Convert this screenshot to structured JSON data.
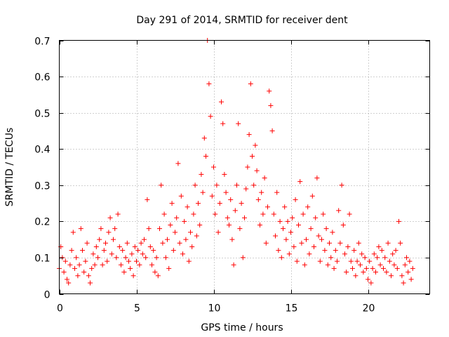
{
  "chart_data": {
    "type": "scatter",
    "title": "Day 291 of 2014, SRMTID for receiver dent",
    "xlabel": "GPS time / hours",
    "ylabel": "SRMTID / TECUs",
    "xlim": [
      0,
      24
    ],
    "ylim": [
      0,
      0.7
    ],
    "x_ticks": [
      {
        "value": 0,
        "label": "0"
      },
      {
        "value": 5,
        "label": "5"
      },
      {
        "value": 10,
        "label": "10"
      },
      {
        "value": 15,
        "label": "15"
      },
      {
        "value": 20,
        "label": "20"
      }
    ],
    "y_ticks": [
      {
        "value": 0,
        "label": "0"
      },
      {
        "value": 0.1,
        "label": "0.1"
      },
      {
        "value": 0.2,
        "label": "0.2"
      },
      {
        "value": 0.3,
        "label": "0.3"
      },
      {
        "value": 0.4,
        "label": "0.4"
      },
      {
        "value": 0.5,
        "label": "0.5"
      },
      {
        "value": 0.6,
        "label": "0.6"
      },
      {
        "value": 0.7,
        "label": "0.7"
      }
    ],
    "grid": true,
    "marker": "+",
    "series_color": "#ff0000",
    "series": [
      {
        "name": "SRMTID",
        "points": [
          [
            0.0,
            0.07
          ],
          [
            0.1,
            0.13
          ],
          [
            0.2,
            0.1
          ],
          [
            0.3,
            0.06
          ],
          [
            0.4,
            0.09
          ],
          [
            0.5,
            0.04
          ],
          [
            0.6,
            0.03
          ],
          [
            0.7,
            0.08
          ],
          [
            0.8,
            0.12
          ],
          [
            0.9,
            0.17
          ],
          [
            1.0,
            0.07
          ],
          [
            1.1,
            0.1
          ],
          [
            1.2,
            0.05
          ],
          [
            1.3,
            0.08
          ],
          [
            1.4,
            0.18
          ],
          [
            1.5,
            0.12
          ],
          [
            1.6,
            0.06
          ],
          [
            1.7,
            0.09
          ],
          [
            1.8,
            0.14
          ],
          [
            1.9,
            0.05
          ],
          [
            2.0,
            0.03
          ],
          [
            2.1,
            0.07
          ],
          [
            2.2,
            0.11
          ],
          [
            2.3,
            0.08
          ],
          [
            2.4,
            0.13
          ],
          [
            2.5,
            0.1
          ],
          [
            2.6,
            0.15
          ],
          [
            2.7,
            0.18
          ],
          [
            2.8,
            0.08
          ],
          [
            2.9,
            0.12
          ],
          [
            3.0,
            0.14
          ],
          [
            3.1,
            0.09
          ],
          [
            3.2,
            0.17
          ],
          [
            3.3,
            0.21
          ],
          [
            3.4,
            0.11
          ],
          [
            3.5,
            0.15
          ],
          [
            3.6,
            0.18
          ],
          [
            3.7,
            0.1
          ],
          [
            3.8,
            0.22
          ],
          [
            3.9,
            0.13
          ],
          [
            4.0,
            0.08
          ],
          [
            4.1,
            0.12
          ],
          [
            4.2,
            0.06
          ],
          [
            4.3,
            0.1
          ],
          [
            4.4,
            0.14
          ],
          [
            4.5,
            0.09
          ],
          [
            4.6,
            0.07
          ],
          [
            4.7,
            0.11
          ],
          [
            4.8,
            0.05
          ],
          [
            4.9,
            0.13
          ],
          [
            5.0,
            0.09
          ],
          [
            5.1,
            0.12
          ],
          [
            5.2,
            0.08
          ],
          [
            5.3,
            0.14
          ],
          [
            5.4,
            0.11
          ],
          [
            5.5,
            0.15
          ],
          [
            5.6,
            0.1
          ],
          [
            5.7,
            0.26
          ],
          [
            5.8,
            0.18
          ],
          [
            5.9,
            0.13
          ],
          [
            6.0,
            0.08
          ],
          [
            6.1,
            0.12
          ],
          [
            6.2,
            0.06
          ],
          [
            6.3,
            0.1
          ],
          [
            6.4,
            0.05
          ],
          [
            6.5,
            0.18
          ],
          [
            6.6,
            0.3
          ],
          [
            6.7,
            0.14
          ],
          [
            6.8,
            0.22
          ],
          [
            6.9,
            0.1
          ],
          [
            7.0,
            0.15
          ],
          [
            7.1,
            0.07
          ],
          [
            7.2,
            0.19
          ],
          [
            7.3,
            0.25
          ],
          [
            7.4,
            0.12
          ],
          [
            7.5,
            0.17
          ],
          [
            7.6,
            0.21
          ],
          [
            7.7,
            0.36
          ],
          [
            7.8,
            0.14
          ],
          [
            7.9,
            0.27
          ],
          [
            8.0,
            0.11
          ],
          [
            8.1,
            0.2
          ],
          [
            8.2,
            0.15
          ],
          [
            8.3,
            0.24
          ],
          [
            8.4,
            0.09
          ],
          [
            8.5,
            0.17
          ],
          [
            8.6,
            0.13
          ],
          [
            8.7,
            0.22
          ],
          [
            8.8,
            0.3
          ],
          [
            8.9,
            0.16
          ],
          [
            9.0,
            0.25
          ],
          [
            9.1,
            0.19
          ],
          [
            9.2,
            0.33
          ],
          [
            9.3,
            0.28
          ],
          [
            9.4,
            0.43
          ],
          [
            9.5,
            0.38
          ],
          [
            9.6,
            0.7
          ],
          [
            9.7,
            0.58
          ],
          [
            9.8,
            0.49
          ],
          [
            9.9,
            0.27
          ],
          [
            10.0,
            0.35
          ],
          [
            10.1,
            0.22
          ],
          [
            10.2,
            0.3
          ],
          [
            10.3,
            0.17
          ],
          [
            10.4,
            0.25
          ],
          [
            10.5,
            0.53
          ],
          [
            10.6,
            0.47
          ],
          [
            10.7,
            0.33
          ],
          [
            10.8,
            0.28
          ],
          [
            10.9,
            0.21
          ],
          [
            11.0,
            0.19
          ],
          [
            11.1,
            0.26
          ],
          [
            11.2,
            0.15
          ],
          [
            11.3,
            0.08
          ],
          [
            11.4,
            0.23
          ],
          [
            11.5,
            0.3
          ],
          [
            11.6,
            0.47
          ],
          [
            11.7,
            0.18
          ],
          [
            11.8,
            0.25
          ],
          [
            11.9,
            0.1
          ],
          [
            12.0,
            0.21
          ],
          [
            12.1,
            0.29
          ],
          [
            12.2,
            0.35
          ],
          [
            12.3,
            0.44
          ],
          [
            12.4,
            0.58
          ],
          [
            12.5,
            0.38
          ],
          [
            12.6,
            0.3
          ],
          [
            12.7,
            0.41
          ],
          [
            12.8,
            0.34
          ],
          [
            12.9,
            0.26
          ],
          [
            13.0,
            0.19
          ],
          [
            13.1,
            0.28
          ],
          [
            13.2,
            0.22
          ],
          [
            13.3,
            0.32
          ],
          [
            13.4,
            0.14
          ],
          [
            13.5,
            0.24
          ],
          [
            13.6,
            0.56
          ],
          [
            13.7,
            0.52
          ],
          [
            13.8,
            0.45
          ],
          [
            13.9,
            0.22
          ],
          [
            14.0,
            0.16
          ],
          [
            14.1,
            0.28
          ],
          [
            14.2,
            0.12
          ],
          [
            14.3,
            0.2
          ],
          [
            14.4,
            0.1
          ],
          [
            14.5,
            0.18
          ],
          [
            14.6,
            0.24
          ],
          [
            14.7,
            0.15
          ],
          [
            14.8,
            0.2
          ],
          [
            14.9,
            0.11
          ],
          [
            15.0,
            0.17
          ],
          [
            15.1,
            0.21
          ],
          [
            15.2,
            0.13
          ],
          [
            15.3,
            0.26
          ],
          [
            15.4,
            0.09
          ],
          [
            15.5,
            0.19
          ],
          [
            15.6,
            0.31
          ],
          [
            15.7,
            0.14
          ],
          [
            15.8,
            0.22
          ],
          [
            15.9,
            0.08
          ],
          [
            16.0,
            0.15
          ],
          [
            16.1,
            0.24
          ],
          [
            16.2,
            0.11
          ],
          [
            16.3,
            0.18
          ],
          [
            16.4,
            0.27
          ],
          [
            16.5,
            0.13
          ],
          [
            16.6,
            0.21
          ],
          [
            16.7,
            0.32
          ],
          [
            16.8,
            0.16
          ],
          [
            16.9,
            0.09
          ],
          [
            17.0,
            0.15
          ],
          [
            17.1,
            0.22
          ],
          [
            17.2,
            0.12
          ],
          [
            17.3,
            0.18
          ],
          [
            17.4,
            0.08
          ],
          [
            17.5,
            0.14
          ],
          [
            17.6,
            0.1
          ],
          [
            17.7,
            0.17
          ],
          [
            17.8,
            0.07
          ],
          [
            17.9,
            0.12
          ],
          [
            18.0,
            0.09
          ],
          [
            18.1,
            0.23
          ],
          [
            18.2,
            0.14
          ],
          [
            18.3,
            0.3
          ],
          [
            18.4,
            0.19
          ],
          [
            18.5,
            0.11
          ],
          [
            18.6,
            0.06
          ],
          [
            18.7,
            0.13
          ],
          [
            18.8,
            0.22
          ],
          [
            18.9,
            0.09
          ],
          [
            19.0,
            0.07
          ],
          [
            19.1,
            0.12
          ],
          [
            19.2,
            0.05
          ],
          [
            19.3,
            0.09
          ],
          [
            19.4,
            0.14
          ],
          [
            19.5,
            0.08
          ],
          [
            19.6,
            0.11
          ],
          [
            19.7,
            0.06
          ],
          [
            19.8,
            0.1
          ],
          [
            19.9,
            0.07
          ],
          [
            20.0,
            0.04
          ],
          [
            20.1,
            0.09
          ],
          [
            20.2,
            0.03
          ],
          [
            20.3,
            0.07
          ],
          [
            20.4,
            0.11
          ],
          [
            20.5,
            0.06
          ],
          [
            20.6,
            0.1
          ],
          [
            20.7,
            0.13
          ],
          [
            20.8,
            0.08
          ],
          [
            20.9,
            0.12
          ],
          [
            21.0,
            0.07
          ],
          [
            21.1,
            0.1
          ],
          [
            21.2,
            0.06
          ],
          [
            21.3,
            0.14
          ],
          [
            21.4,
            0.09
          ],
          [
            21.5,
            0.05
          ],
          [
            21.6,
            0.11
          ],
          [
            21.7,
            0.08
          ],
          [
            21.8,
            0.12
          ],
          [
            21.9,
            0.07
          ],
          [
            22.0,
            0.2
          ],
          [
            22.1,
            0.14
          ],
          [
            22.2,
            0.05
          ],
          [
            22.3,
            0.03
          ],
          [
            22.4,
            0.08
          ],
          [
            22.5,
            0.1
          ],
          [
            22.6,
            0.06
          ],
          [
            22.7,
            0.09
          ],
          [
            22.8,
            0.04
          ],
          [
            22.9,
            0.07
          ]
        ]
      }
    ]
  }
}
